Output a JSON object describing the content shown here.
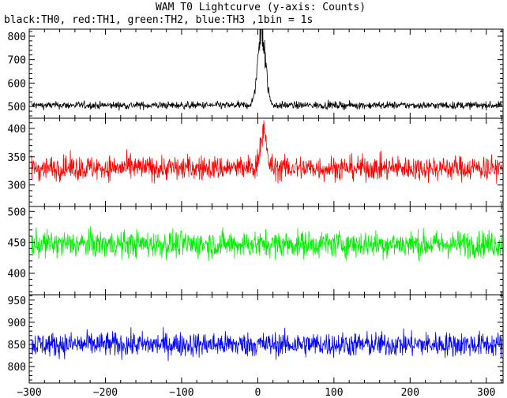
{
  "chart_data": {
    "type": "line",
    "title": "WAM T0 Lightcurve (y-axis: Counts)",
    "subtitle": "black:TH0, red:TH1, green:TH2, blue:TH3 ,1bin = 1s",
    "xlabel": "",
    "ylabel": "",
    "xlim": [
      -300,
      322
    ],
    "x_ticks": [
      -300,
      -200,
      -100,
      0,
      100,
      200,
      300
    ],
    "x_tick_labels": [
      "−300",
      "−200",
      "−100",
      "0",
      "100",
      "200",
      "300"
    ],
    "grid": false,
    "panels": [
      {
        "ylim": [
          450,
          830
        ],
        "y_ticks": [
          500,
          600,
          700,
          800
        ],
        "color": "#000000",
        "baseline": 505,
        "noise": 16,
        "peak_x": 5,
        "peak_height": 330,
        "peak_width": 5
      },
      {
        "ylim": [
          262,
          418
        ],
        "y_ticks": [
          300,
          350,
          400
        ],
        "color": "#ff0000",
        "baseline": 330,
        "noise": 22,
        "peak_x": 7,
        "peak_height": 65,
        "peak_width": 4
      },
      {
        "ylim": [
          365,
          508
        ],
        "y_ticks": [
          400,
          450,
          500
        ],
        "color": "#00ee00",
        "baseline": 447,
        "noise": 22
      },
      {
        "ylim": [
          763,
          962
        ],
        "y_ticks": [
          800,
          850,
          900,
          950
        ],
        "color": "#0000ff",
        "baseline": 850,
        "noise": 28
      }
    ]
  }
}
